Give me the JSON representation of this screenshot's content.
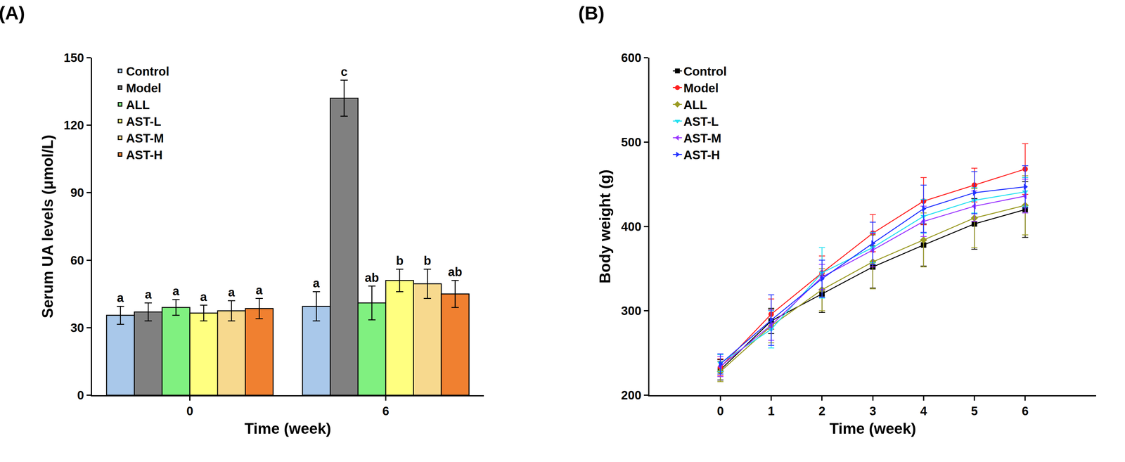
{
  "chart_data": [
    {
      "type": "bar",
      "title": "(A)",
      "x_label": "Time (week)",
      "y_label": "Serum UA levels (μmol/L)",
      "categories": [
        "0",
        "6"
      ],
      "series": [
        {
          "name": "Control",
          "color": "#a9c8ea",
          "values": [
            35.5,
            39.5
          ],
          "errors": [
            4,
            6.5
          ],
          "annotations": [
            "a",
            "a"
          ]
        },
        {
          "name": "Model",
          "color": "#808080",
          "values": [
            37,
            132
          ],
          "errors": [
            4,
            8
          ],
          "annotations": [
            "a",
            "c"
          ]
        },
        {
          "name": "ALL",
          "color": "#80f080",
          "values": [
            39,
            41
          ],
          "errors": [
            3.5,
            7.5
          ],
          "annotations": [
            "a",
            "ab"
          ]
        },
        {
          "name": "AST-L",
          "color": "#ffff80",
          "values": [
            36.5,
            51
          ],
          "errors": [
            3.5,
            5
          ],
          "annotations": [
            "a",
            "b"
          ]
        },
        {
          "name": "AST-M",
          "color": "#f7d98e",
          "values": [
            37.5,
            49.5
          ],
          "errors": [
            4.5,
            6.5
          ],
          "annotations": [
            "a",
            "b"
          ]
        },
        {
          "name": "AST-H",
          "color": "#f08030",
          "values": [
            38.5,
            45
          ],
          "errors": [
            4.5,
            6
          ],
          "annotations": [
            "a",
            "ab"
          ]
        }
      ],
      "ylim": [
        0,
        150
      ],
      "yticks": [
        0,
        30,
        60,
        90,
        120,
        150
      ],
      "grid": false,
      "legend": "top-left"
    },
    {
      "type": "line",
      "title": "(B)",
      "x_label": "Time (week)",
      "y_label": "Body weight (g)",
      "x": [
        0,
        1,
        2,
        3,
        4,
        5,
        6
      ],
      "series": [
        {
          "name": "Control",
          "color": "#000000",
          "marker": "square",
          "values": [
            230,
            288,
            320,
            352,
            378,
            403,
            420
          ],
          "errors": [
            12,
            15,
            22,
            25,
            25,
            30,
            33
          ]
        },
        {
          "name": "Model",
          "color": "#ff2020",
          "marker": "circle",
          "values": [
            233,
            296,
            345,
            392,
            430,
            449,
            468
          ],
          "errors": [
            10,
            18,
            20,
            22,
            28,
            20,
            30
          ]
        },
        {
          "name": "ALL",
          "color": "#9a9a22",
          "marker": "diamond",
          "values": [
            228,
            282,
            325,
            358,
            384,
            410,
            425
          ],
          "errors": [
            12,
            20,
            25,
            32,
            32,
            35,
            35
          ]
        },
        {
          "name": "AST-L",
          "color": "#20e0f0",
          "marker": "triangle-down",
          "values": [
            238,
            278,
            345,
            375,
            412,
            431,
            441
          ],
          "errors": [
            10,
            22,
            30,
            18,
            20,
            15,
            17
          ]
        },
        {
          "name": "AST-M",
          "color": "#9933ff",
          "marker": "triangle-left",
          "values": [
            234,
            283,
            340,
            372,
            406,
            424,
            436
          ],
          "errors": [
            12,
            18,
            15,
            20,
            18,
            18,
            20
          ]
        },
        {
          "name": "AST-H",
          "color": "#2030ff",
          "marker": "triangle-right",
          "values": [
            237,
            289,
            338,
            380,
            421,
            440,
            447
          ],
          "errors": [
            12,
            30,
            22,
            25,
            28,
            25,
            25
          ]
        }
      ],
      "xlim": [
        -1.4,
        7.4
      ],
      "xticks": [
        0,
        1,
        2,
        3,
        4,
        5,
        6
      ],
      "ylim": [
        200,
        600
      ],
      "yticks": [
        200,
        300,
        400,
        500,
        600
      ],
      "grid": false,
      "legend": "top-left"
    }
  ]
}
